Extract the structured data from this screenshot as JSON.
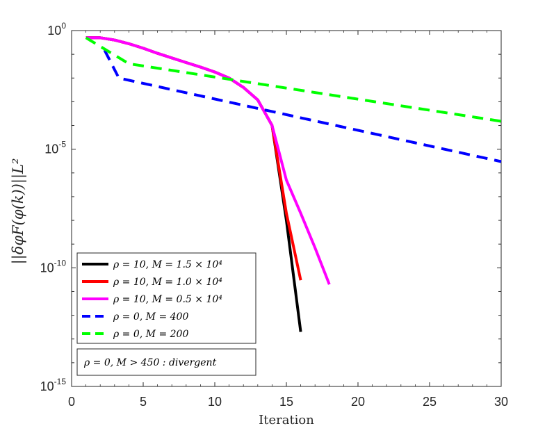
{
  "chart_data": {
    "type": "line",
    "xlabel": "Iteration",
    "ylabel": "||δφF(φ(k))||L²",
    "y_scale": "log",
    "xlim": [
      0,
      30
    ],
    "ylim": [
      1e-15,
      1
    ],
    "x_ticks": [
      "0",
      "5",
      "10",
      "15",
      "20",
      "25",
      "30"
    ],
    "y_ticks": [
      {
        "base": "10",
        "exp": "0"
      },
      {
        "base": "10",
        "exp": "-5"
      },
      {
        "base": "10",
        "exp": "-10"
      },
      {
        "base": "10",
        "exp": "-15"
      }
    ],
    "grid": false,
    "legend_position": "bottom-left",
    "series": [
      {
        "name": "ρ = 10, M = 1.5 × 10⁴",
        "color": "#000000",
        "style": "solid",
        "x": [
          1,
          2,
          3,
          4,
          5,
          6,
          7,
          8,
          9,
          10,
          11,
          12,
          13,
          14,
          15,
          16
        ],
        "y": [
          0.5,
          0.5,
          0.4,
          0.28,
          0.18,
          0.11,
          0.07,
          0.045,
          0.029,
          0.018,
          0.01,
          0.004,
          0.0012,
          0.0001,
          1e-08,
          2e-13
        ]
      },
      {
        "name": "ρ = 10, M = 1.0 × 10⁴",
        "color": "#ff0000",
        "style": "solid",
        "x": [
          1,
          2,
          3,
          4,
          5,
          6,
          7,
          8,
          9,
          10,
          11,
          12,
          13,
          14,
          15,
          16
        ],
        "y": [
          0.5,
          0.5,
          0.4,
          0.28,
          0.18,
          0.11,
          0.07,
          0.045,
          0.029,
          0.018,
          0.01,
          0.004,
          0.0012,
          0.0001,
          2e-08,
          3e-11
        ]
      },
      {
        "name": "ρ = 10, M = 0.5 × 10⁴",
        "color": "#ff00ff",
        "style": "solid",
        "x": [
          1,
          2,
          3,
          4,
          5,
          6,
          7,
          8,
          9,
          10,
          11,
          12,
          13,
          14,
          15,
          16,
          17,
          18
        ],
        "y": [
          0.5,
          0.5,
          0.4,
          0.28,
          0.18,
          0.11,
          0.07,
          0.045,
          0.029,
          0.018,
          0.01,
          0.004,
          0.0012,
          0.0001,
          5e-07,
          2e-08,
          7e-10,
          2e-11
        ]
      },
      {
        "name": "ρ = 0, M = 400",
        "color": "#0000ff",
        "style": "dashed",
        "x": [
          2.3,
          3.3,
          30
        ],
        "y": [
          0.15,
          0.01,
          3e-06
        ]
      },
      {
        "name": "ρ = 0, M = 200",
        "color": "#00ff00",
        "style": "dashed",
        "x": [
          1,
          4,
          30
        ],
        "y": [
          0.5,
          0.04,
          0.00015
        ]
      }
    ],
    "annotation": "ρ = 0, M > 450 : divergent"
  }
}
